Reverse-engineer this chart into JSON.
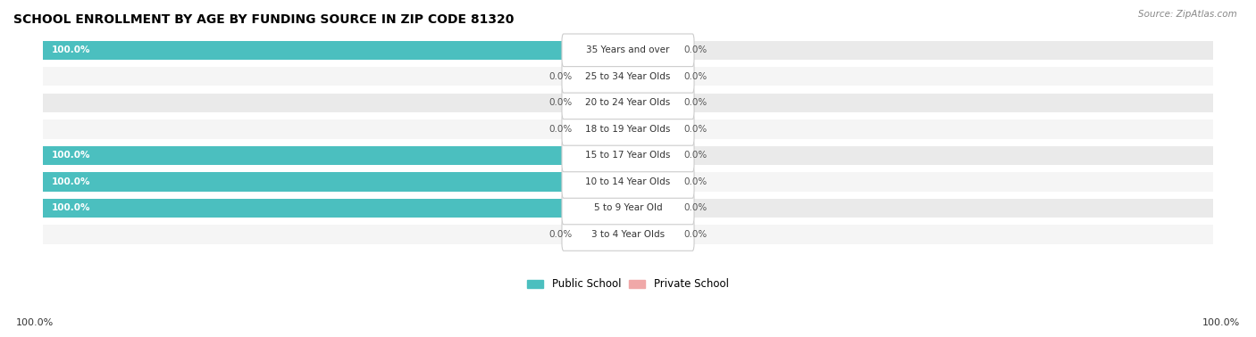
{
  "title": "SCHOOL ENROLLMENT BY AGE BY FUNDING SOURCE IN ZIP CODE 81320",
  "source": "Source: ZipAtlas.com",
  "categories": [
    "3 to 4 Year Olds",
    "5 to 9 Year Old",
    "10 to 14 Year Olds",
    "15 to 17 Year Olds",
    "18 to 19 Year Olds",
    "20 to 24 Year Olds",
    "25 to 34 Year Olds",
    "35 Years and over"
  ],
  "public_values": [
    0.0,
    100.0,
    100.0,
    100.0,
    0.0,
    0.0,
    0.0,
    100.0
  ],
  "private_values": [
    0.0,
    0.0,
    0.0,
    0.0,
    0.0,
    0.0,
    0.0,
    0.0
  ],
  "public_color": "#4BBFBF",
  "private_color": "#F0A8A8",
  "public_stub_color": "#A8DCDC",
  "private_stub_color": "#F5C8C8",
  "row_colors": [
    "#f5f5f5",
    "#eaeaea"
  ],
  "title_fontsize": 10,
  "label_fontsize": 7.5,
  "axis_label_left": "100.0%",
  "axis_label_right": "100.0%",
  "bar_height": 0.72,
  "stub_size": 8,
  "figsize": [
    14.06,
    3.78
  ]
}
